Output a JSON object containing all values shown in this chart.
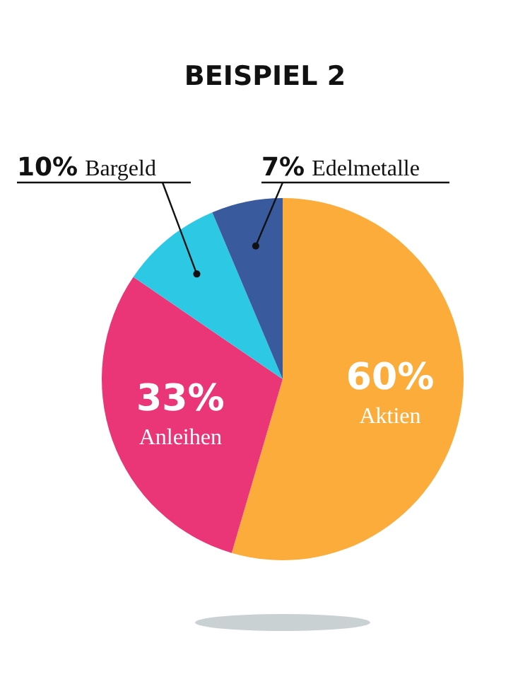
{
  "chart_data": {
    "type": "pie",
    "title": "BEISPIEL 2",
    "categories": [
      "Aktien",
      "Anleihen",
      "Bargeld",
      "Edelmetalle"
    ],
    "values": [
      60,
      33,
      10,
      7
    ],
    "value_labels": [
      "60%",
      "33%",
      "10%",
      "7%"
    ],
    "colors": [
      "#fbac3a",
      "#ea3677",
      "#2cc8e4",
      "#3a5a9e"
    ]
  }
}
